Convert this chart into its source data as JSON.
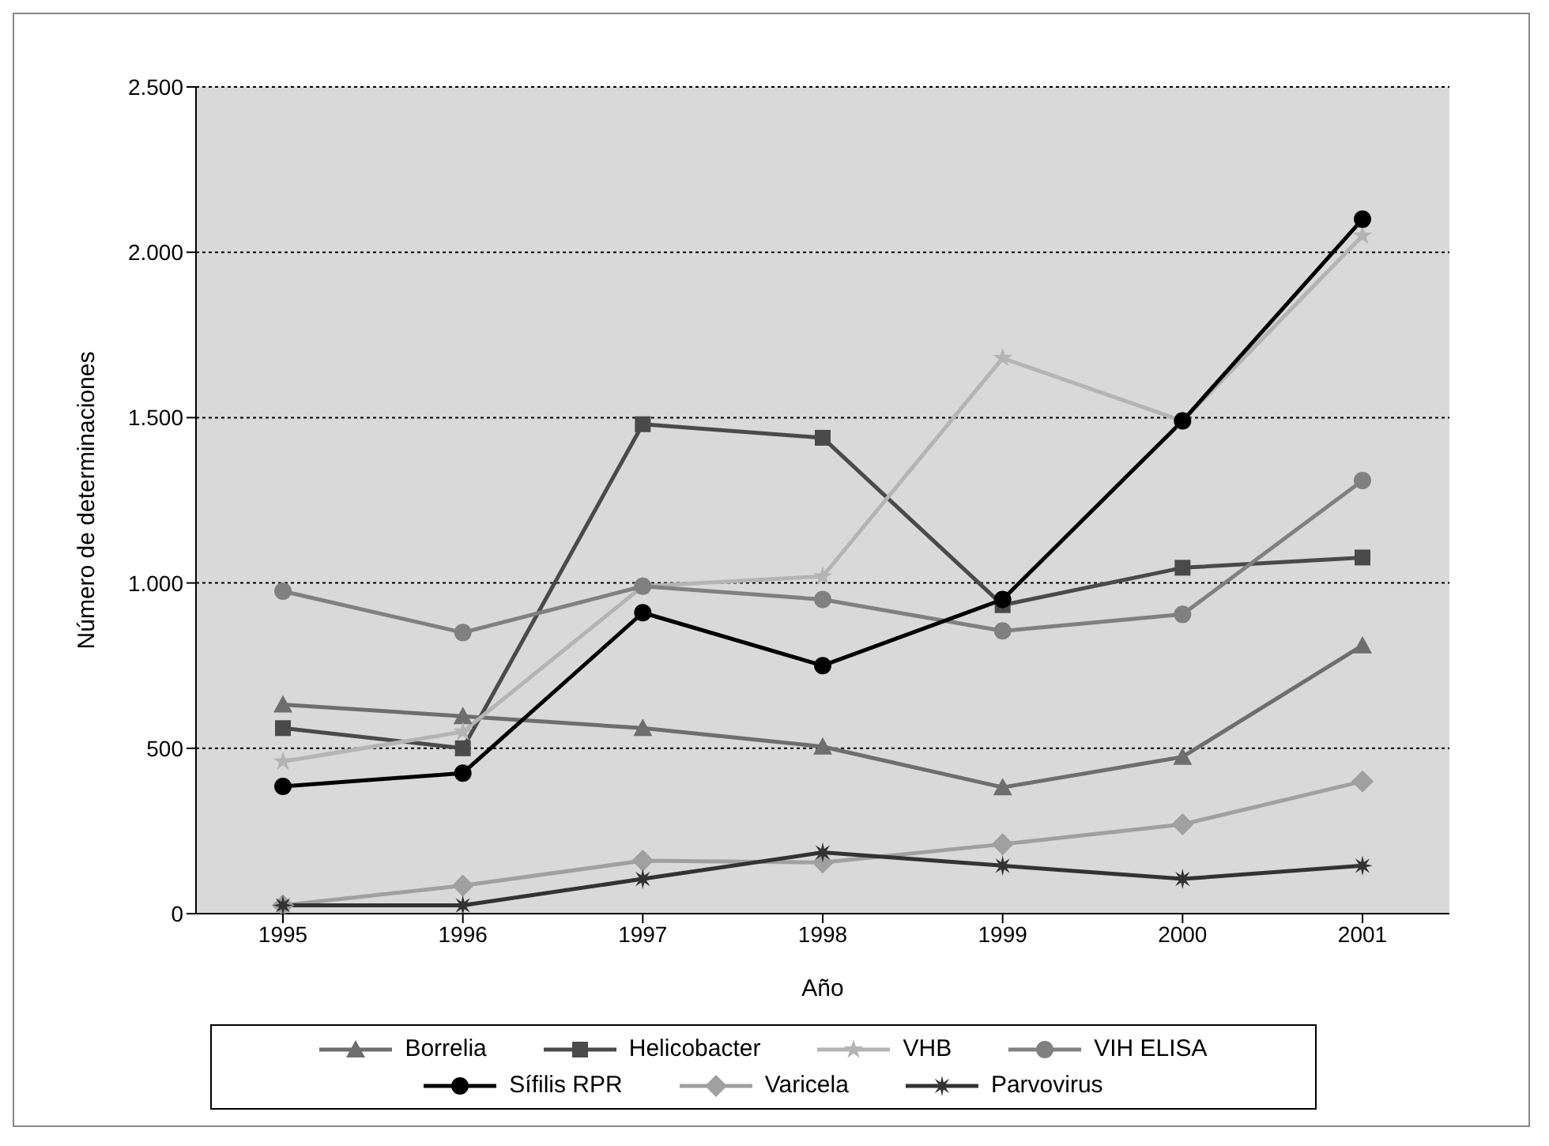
{
  "chart_data": {
    "type": "line",
    "xlabel": "Año",
    "ylabel": "Número de determinaciones",
    "categories": [
      "1995",
      "1996",
      "1997",
      "1998",
      "1999",
      "2000",
      "2001"
    ],
    "ylim": [
      0,
      2500
    ],
    "yticks": [
      0,
      500,
      {
        "value": 1000,
        "label": "1.000"
      },
      {
        "value": 1500,
        "label": "1.500"
      },
      {
        "value": 2000,
        "label": "2.000"
      },
      {
        "value": 2500,
        "label": "2.500"
      }
    ],
    "grid": "y",
    "legend": "bottom",
    "line_style": "solid",
    "series": [
      {
        "name": "Borrelia",
        "color": "#6e6e6e",
        "marker": "triangle",
        "values": [
          632,
          597,
          561,
          505,
          382,
          474,
          811
        ]
      },
      {
        "name": "Helicobacter",
        "color": "#4a4a4a",
        "marker": "square",
        "values": [
          561,
          500,
          1480,
          1439,
          933,
          1046,
          1077
        ]
      },
      {
        "name": "VHB",
        "color": "#b4b4b4",
        "marker": "star",
        "values": [
          460,
          550,
          990,
          1020,
          1680,
          1490,
          2050
        ]
      },
      {
        "name": "VIH ELISA",
        "color": "#808080",
        "marker": "circle",
        "values": [
          975,
          850,
          990,
          950,
          855,
          905,
          1310
        ]
      },
      {
        "name": "Sífilis RPR",
        "color": "#000000",
        "marker": "circle",
        "values": [
          385,
          425,
          910,
          750,
          950,
          1490,
          2100
        ]
      },
      {
        "name": "Varicela",
        "color": "#a0a0a0",
        "marker": "diamond",
        "values": [
          25,
          85,
          160,
          155,
          210,
          270,
          400
        ]
      },
      {
        "name": "Parvovirus",
        "color": "#333333",
        "marker": "cross",
        "values": [
          25,
          25,
          105,
          185,
          145,
          105,
          145
        ]
      }
    ]
  }
}
